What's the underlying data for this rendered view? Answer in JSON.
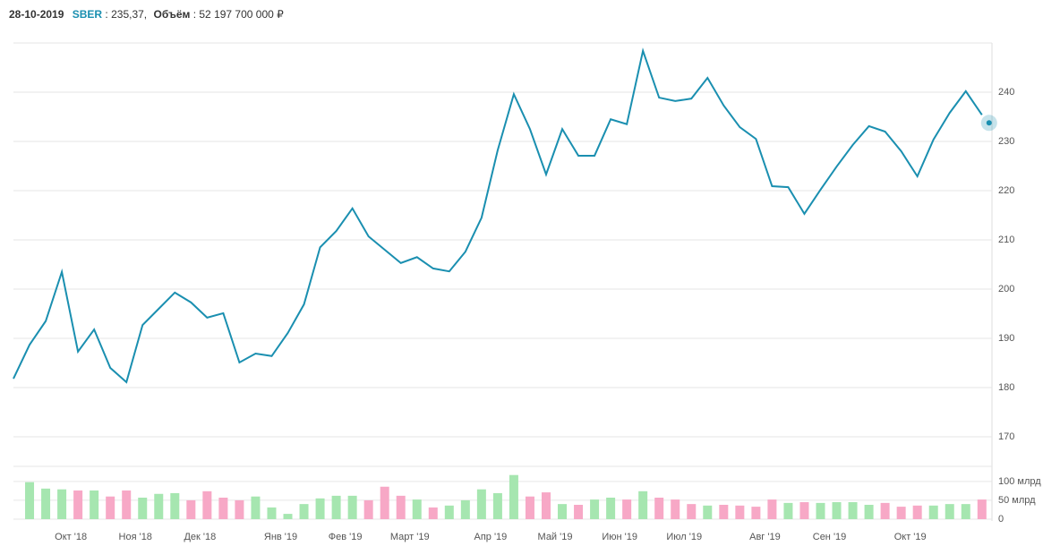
{
  "header": {
    "date": "28-10-2019",
    "ticker": "SBER",
    "price": ": 235,37,",
    "volume_label": "Объём",
    "volume": ": 52 197 700 000 ₽"
  },
  "chart_data": [
    {
      "type": "line",
      "color": "#1a8fb0",
      "grid": true,
      "x": [
        null,
        null,
        null,
        null,
        "Окт '18",
        null,
        null,
        null,
        "Ноя '18",
        null,
        null,
        null,
        "Дек '18",
        null,
        null,
        null,
        null,
        "Янв '19",
        null,
        null,
        null,
        "Фев '19",
        null,
        null,
        null,
        "Март '19",
        null,
        null,
        null,
        null,
        "Апр '19",
        null,
        null,
        null,
        "Май '19",
        null,
        null,
        null,
        "Июн '19",
        null,
        null,
        null,
        "Июл '19",
        null,
        null,
        null,
        null,
        "Авг '19",
        null,
        null,
        null,
        "Сен '19",
        null,
        null,
        null,
        null,
        "Окт '19",
        null,
        null,
        null,
        null
      ],
      "values": [
        181.8,
        188.7,
        193.5,
        203.5,
        187.3,
        191.8,
        184.0,
        181.1,
        192.7,
        196.0,
        199.3,
        197.3,
        194.2,
        195.1,
        185.1,
        186.9,
        186.4,
        191.1,
        196.9,
        208.5,
        211.8,
        216.4,
        210.7,
        208.0,
        205.3,
        206.5,
        204.2,
        203.6,
        207.6,
        214.5,
        228.2,
        239.6,
        232.5,
        223.3,
        232.5,
        227.1,
        227.1,
        234.5,
        233.5,
        248.4,
        238.9,
        238.2,
        238.7,
        242.9,
        237.3,
        232.9,
        230.5,
        220.9,
        220.7,
        215.3,
        220.2,
        224.9,
        229.3,
        233.1,
        232.0,
        228.0,
        222.9,
        230.4,
        235.8,
        240.2,
        235.4
      ],
      "ylim": [
        167,
        250
      ],
      "yticks": [
        170,
        180,
        190,
        200,
        210,
        220,
        230,
        240
      ]
    },
    {
      "type": "bar",
      "values": [
        null,
        98,
        81,
        79,
        76,
        76,
        60,
        76,
        57,
        67,
        69,
        50,
        74,
        57,
        50,
        60,
        31,
        14,
        40,
        55,
        62,
        62,
        50,
        86,
        62,
        52,
        31,
        36,
        50,
        79,
        69,
        117,
        60,
        71,
        40,
        38,
        52,
        57,
        52,
        74,
        57,
        52,
        40,
        36,
        38,
        36,
        33,
        52,
        43,
        45,
        43,
        45,
        45,
        38,
        43,
        33,
        36,
        36,
        40,
        40,
        52
      ],
      "colors": [
        null,
        "#a6e6b0",
        "#a6e6b0",
        "#a6e6b0",
        "#f7a8c6",
        "#a6e6b0",
        "#f7a8c6",
        "#f7a8c6",
        "#a6e6b0",
        "#a6e6b0",
        "#a6e6b0",
        "#f7a8c6",
        "#f7a8c6",
        "#f7a8c6",
        "#f7a8c6",
        "#a6e6b0",
        "#a6e6b0",
        "#a6e6b0",
        "#a6e6b0",
        "#a6e6b0",
        "#a6e6b0",
        "#a6e6b0",
        "#f7a8c6",
        "#f7a8c6",
        "#f7a8c6",
        "#a6e6b0",
        "#f7a8c6",
        "#a6e6b0",
        "#a6e6b0",
        "#a6e6b0",
        "#a6e6b0",
        "#a6e6b0",
        "#f7a8c6",
        "#f7a8c6",
        "#a6e6b0",
        "#f7a8c6",
        "#a6e6b0",
        "#a6e6b0",
        "#f7a8c6",
        "#a6e6b0",
        "#f7a8c6",
        "#f7a8c6",
        "#f7a8c6",
        "#a6e6b0",
        "#f7a8c6",
        "#f7a8c6",
        "#f7a8c6",
        "#f7a8c6",
        "#a6e6b0",
        "#f7a8c6",
        "#a6e6b0",
        "#a6e6b0",
        "#a6e6b0",
        "#a6e6b0",
        "#f7a8c6",
        "#f7a8c6",
        "#f7a8c6",
        "#a6e6b0",
        "#a6e6b0",
        "#a6e6b0",
        "#f7a8c6"
      ],
      "ylim": [
        0,
        140
      ],
      "yticks": [
        0,
        {
          "value": 50,
          "label": "50 млрд"
        },
        {
          "value": 100,
          "label": "100 млрд"
        }
      ]
    }
  ]
}
